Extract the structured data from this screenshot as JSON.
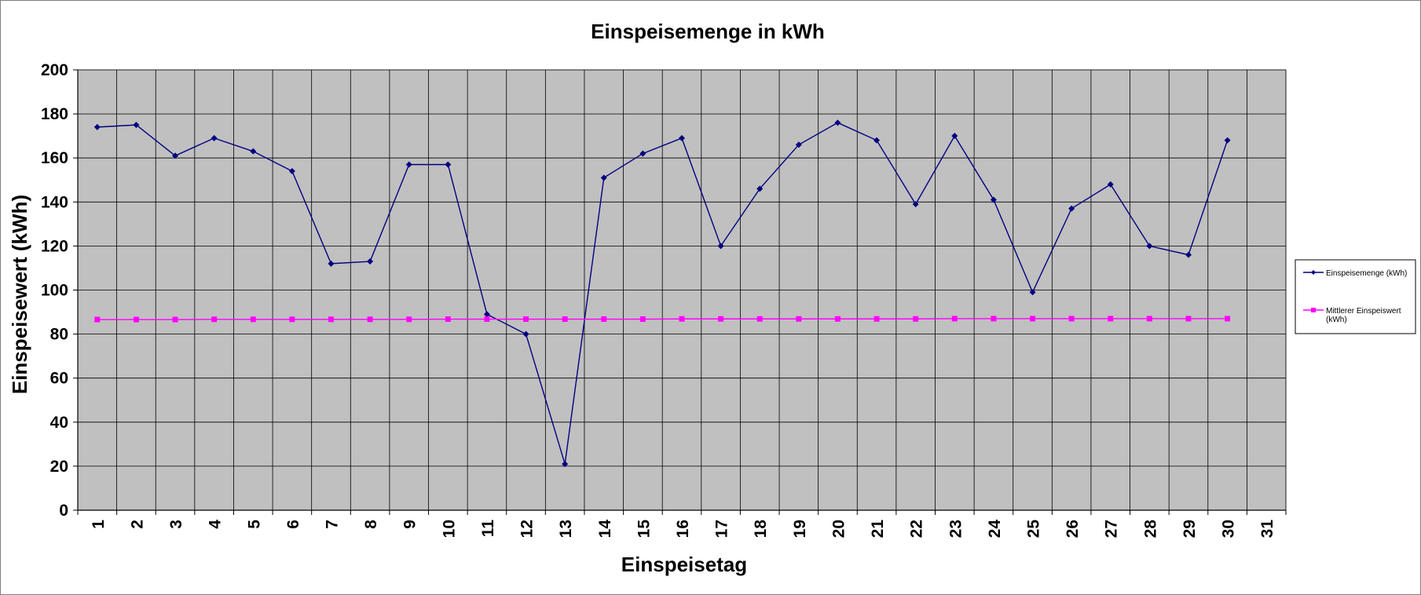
{
  "chart_data": {
    "type": "line",
    "title": "Einspeisemenge in kWh",
    "xlabel": "Einspeisetag",
    "ylabel": "Einspeisewert  (kWh)",
    "categories": [
      "1",
      "2",
      "3",
      "4",
      "5",
      "6",
      "7",
      "8",
      "9",
      "10",
      "11",
      "12",
      "13",
      "14",
      "15",
      "16",
      "17",
      "18",
      "19",
      "20",
      "21",
      "22",
      "23",
      "24",
      "25",
      "26",
      "27",
      "28",
      "29",
      "30",
      "31"
    ],
    "ylim": [
      0,
      200
    ],
    "yticks": [
      "0",
      "20",
      "40",
      "60",
      "80",
      "100",
      "120",
      "140",
      "160",
      "180",
      "200"
    ],
    "grid": true,
    "legend_position": "right",
    "background": "#c0c0c0",
    "series": [
      {
        "name": "Einspeisemenge (kWh)",
        "color": "#000080",
        "marker": "diamond",
        "values": [
          174,
          175,
          161,
          169,
          163,
          154,
          112,
          113,
          157,
          157,
          89,
          80,
          21,
          151,
          162,
          169,
          120,
          146,
          166,
          176,
          168,
          139,
          170,
          141,
          99,
          137,
          148,
          120,
          116,
          168,
          null
        ]
      },
      {
        "name": "Mittlerer Einspeiswert (kWh)",
        "color": "#ff00ff",
        "marker": "square",
        "values": [
          86.6,
          86.6,
          86.6,
          86.7,
          86.7,
          86.7,
          86.7,
          86.7,
          86.7,
          86.8,
          86.8,
          86.8,
          86.8,
          86.8,
          86.8,
          86.9,
          86.9,
          86.9,
          86.9,
          86.9,
          86.9,
          86.9,
          87.0,
          87.0,
          87.0,
          87.0,
          87.0,
          87.0,
          87.0,
          87.0,
          null
        ]
      }
    ]
  }
}
